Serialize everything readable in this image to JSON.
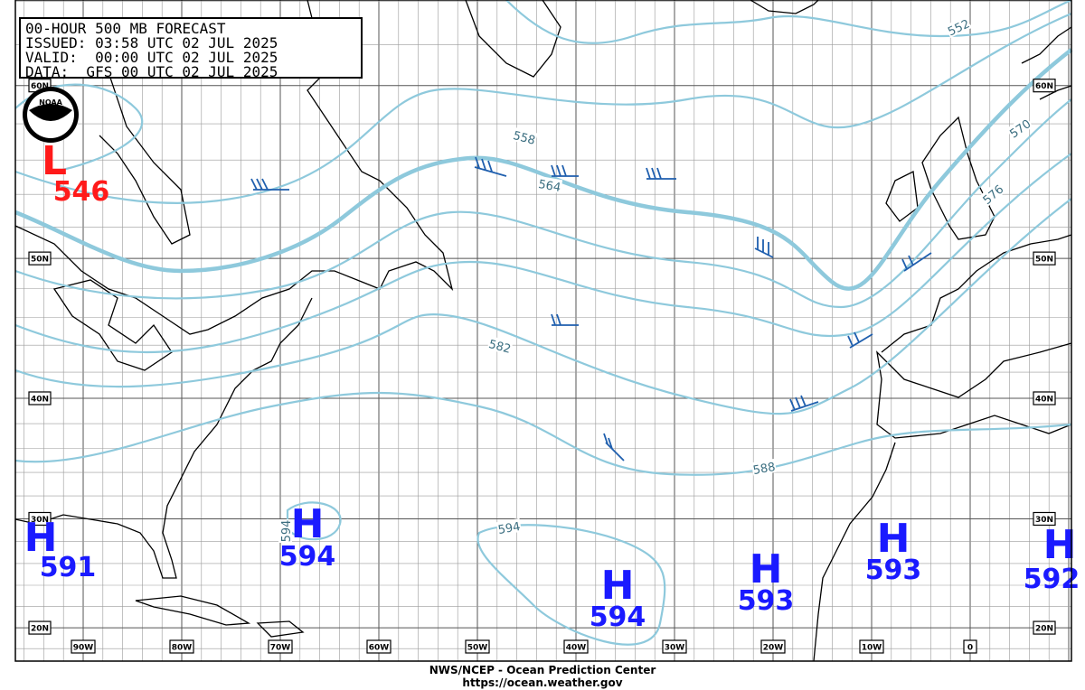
{
  "header": {
    "lines": [
      "00-HOUR 500 MB FORECAST",
      "ISSUED: 03:58 UTC 02 JUL 2025",
      "VALID:  00:00 UTC 02 JUL 2025",
      "DATA:  GFS 00 UTC 02 JUL 2025"
    ]
  },
  "logo": "NOAA",
  "latitude_labels": [
    "60N",
    "50N",
    "40N",
    "30N",
    "20N"
  ],
  "longitude_labels": [
    "90W",
    "80W",
    "70W",
    "60W",
    "50W",
    "40W",
    "30W",
    "20W",
    "10W",
    "0"
  ],
  "contour_labels": [
    "552",
    "558",
    "564",
    "570",
    "576",
    "582",
    "588",
    "594",
    "594"
  ],
  "centers": [
    {
      "symbol": "L",
      "value": "546"
    },
    {
      "symbol": "H",
      "value": "591"
    },
    {
      "symbol": "H",
      "value": "594"
    },
    {
      "symbol": "H",
      "value": "594"
    },
    {
      "symbol": "H",
      "value": "593"
    },
    {
      "symbol": "H",
      "value": "593"
    },
    {
      "symbol": "H",
      "value": "592"
    }
  ],
  "footer": {
    "agency": "NWS/NCEP - Ocean Prediction Center",
    "url": "https://ocean.weather.gov"
  }
}
